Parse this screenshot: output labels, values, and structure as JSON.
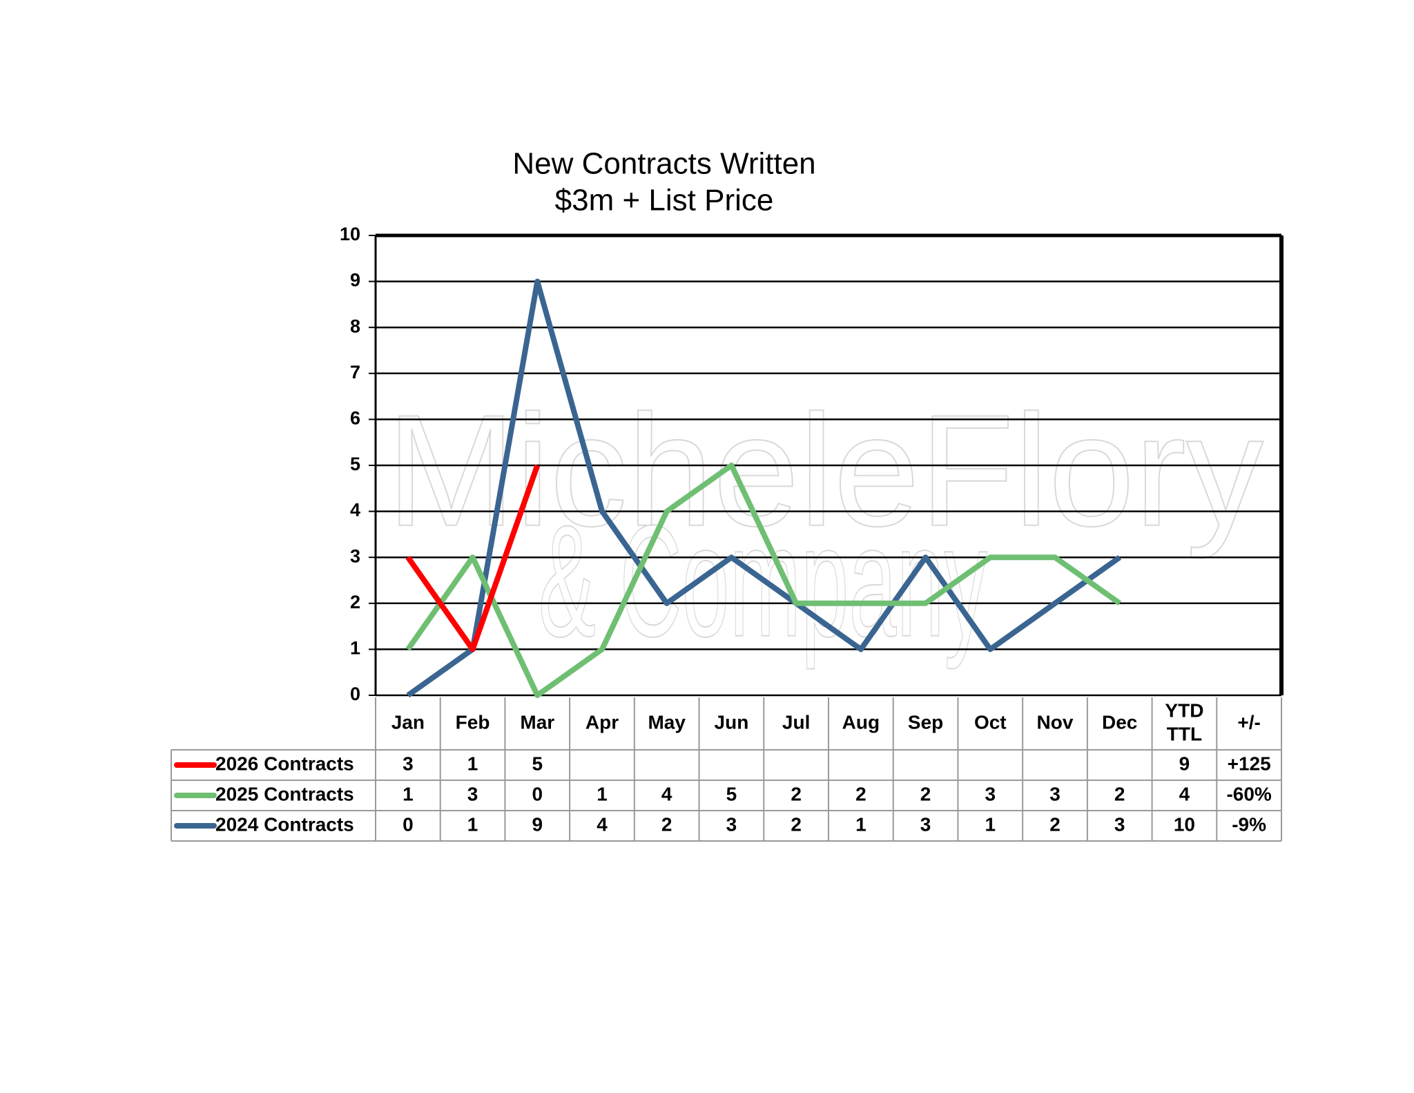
{
  "chart_data": {
    "type": "line",
    "title": [
      "New Contracts Written",
      "$3m + List Price"
    ],
    "watermark": [
      "MicheleFlory",
      "& Company"
    ],
    "categories": [
      "Jan",
      "Feb",
      "Mar",
      "Apr",
      "May",
      "Jun",
      "Jul",
      "Aug",
      "Sep",
      "Oct",
      "Nov",
      "Dec"
    ],
    "series": [
      {
        "name": "2026 Contracts",
        "color": "#ff0000",
        "values": [
          3,
          1,
          5,
          null,
          null,
          null,
          null,
          null,
          null,
          null,
          null,
          null
        ],
        "ytd": 9,
        "change": "+125"
      },
      {
        "name": "2025 Contracts",
        "color": "#6fbf73",
        "values": [
          1,
          3,
          0,
          1,
          4,
          5,
          2,
          2,
          2,
          3,
          3,
          2
        ],
        "ytd": 4,
        "change": "-60%"
      },
      {
        "name": "2024 Contracts",
        "color": "#3a6591",
        "values": [
          0,
          1,
          9,
          4,
          2,
          3,
          2,
          1,
          3,
          1,
          2,
          3
        ],
        "ytd": 10,
        "change": "-9%"
      }
    ],
    "table_headers": [
      [
        "YTD",
        "TTL"
      ],
      "+/-"
    ],
    "ylim": [
      0,
      10
    ],
    "yticks": [
      0,
      1,
      2,
      3,
      4,
      5,
      6,
      7,
      8,
      9,
      10
    ],
    "grid": true
  }
}
